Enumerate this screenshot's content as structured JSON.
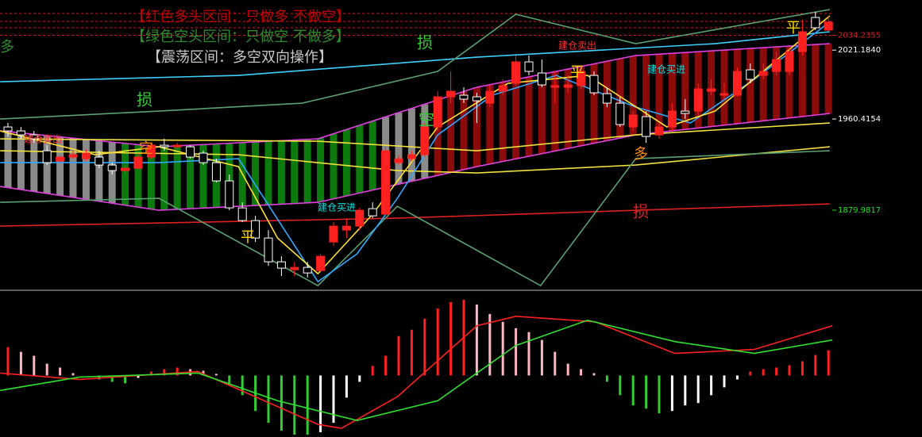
{
  "chart_data": [
    {
      "type": "candlestick",
      "open": [
        1953.4,
        1949.9,
        1946.4,
        1932.4,
        1923.3,
        1926.8,
        1925.4,
        1926.8,
        1919.8,
        1914.9,
        1917.0,
        1926.8,
        1937.3,
        1935.9,
        1935.9,
        1930.3,
        1921.9,
        1905.8,
        1882.0,
        1870.8,
        1855.4,
        1834.4,
        1827.4,
        1829.5,
        1826.7,
        1851.9,
        1862.4,
        1865.9,
        1881.3,
        1876.4,
        1921.9,
        1925.4,
        1928.9,
        1953.4,
        1980.0,
        1981.4,
        1980.0,
        1974.4,
        1984.9,
        1991.9,
        2010.8,
        2001.0,
        1988.4,
        1988.4,
        1989.8,
        1998.9,
        1982.8,
        1974.4,
        1953.4,
        1962.5,
        1946.4,
        1953.4,
        1967.4,
        1967.4,
        1984.9,
        1981.4,
        1981.4,
        2003.8,
        1998.9,
        2002.4,
        2002.4,
        2019.9,
        2050.0,
        2038.8
      ],
      "high": [
        1956.9,
        1953.4,
        1949.9,
        1937.3,
        1928.9,
        1932.4,
        1933.8,
        1932.4,
        1921.9,
        1919.8,
        1930.3,
        1939.4,
        1942.9,
        1939.4,
        1937.3,
        1932.4,
        1925.4,
        1911.4,
        1886.9,
        1875.0,
        1862.4,
        1839.3,
        1834.4,
        1834.4,
        1841.4,
        1869.4,
        1872.9,
        1882.0,
        1886.9,
        1935.9,
        1928.9,
        1932.4,
        1956.9,
        1984.9,
        2002.4,
        1988.4,
        1983.5,
        1989.8,
        1995.4,
        2016.4,
        2016.4,
        2012.9,
        2002.4,
        1998.9,
        2005.9,
        2002.4,
        1988.4,
        1980.0,
        1967.4,
        1967.4,
        1956.9,
        1974.4,
        1977.9,
        1991.9,
        1995.4,
        1991.9,
        2005.9,
        2009.4,
        2009.4,
        2019.9,
        2023.4,
        2047.9,
        2054.9,
        2051.4
      ],
      "low": [
        1945.0,
        1942.9,
        1939.4,
        1919.8,
        1921.9,
        1925.4,
        1923.3,
        1917.0,
        1911.4,
        1911.4,
        1916.3,
        1925.4,
        1932.4,
        1933.8,
        1925.4,
        1919.8,
        1904.4,
        1879.9,
        1869.4,
        1851.9,
        1830.9,
        1821.8,
        1821.8,
        1820.4,
        1824.6,
        1848.4,
        1855.4,
        1862.4,
        1872.9,
        1875.0,
        1919.8,
        1923.3,
        1926.8,
        1949.9,
        1974.4,
        1974.4,
        1956.9,
        1970.9,
        1981.4,
        1989.8,
        1998.9,
        1988.4,
        1974.4,
        1983.5,
        1987.0,
        1981.4,
        1970.9,
        1953.4,
        1949.9,
        1939.4,
        1942.9,
        1949.9,
        1960.4,
        1963.9,
        1981.4,
        1977.9,
        1980.0,
        1991.9,
        1995.4,
        1998.9,
        1998.9,
        2016.4,
        2038.8,
        2037.4
      ],
      "close": [
        1949.9,
        1946.4,
        1942.9,
        1921.9,
        1926.8,
        1928.9,
        1930.3,
        1919.8,
        1914.9,
        1917.0,
        1926.8,
        1937.3,
        1935.9,
        1937.3,
        1926.8,
        1921.9,
        1905.8,
        1882.0,
        1870.8,
        1855.4,
        1834.4,
        1828.8,
        1829.5,
        1824.6,
        1839.3,
        1865.9,
        1865.9,
        1879.9,
        1875.0,
        1932.4,
        1925.4,
        1928.9,
        1953.4,
        1980.0,
        1984.9,
        1977.9,
        1976.5,
        1984.9,
        1989.8,
        2010.8,
        2002.4,
        1990.5,
        1989.8,
        1990.5,
        2002.4,
        1983.5,
        1974.4,
        1955.5,
        1963.9,
        1945.0,
        1953.4,
        1967.4,
        1965.3,
        1987.0,
        1987.0,
        1982.8,
        2002.4,
        1995.4,
        2002.4,
        2012.9,
        2019.9,
        2037.4,
        2040.9,
        2045.8
      ],
      "up_color": "#ff2020",
      "down_color": "#ffffff",
      "ylim": [
        1810,
        2065.4
      ],
      "yticks": [
        2034.2355,
        {
          "value": 2021.184,
          "label": "2021.1840"
        },
        1960.4154,
        1879.9817
      ],
      "ytick_colors": [
        "#d02020",
        "#ffffff",
        "#ffffff",
        "#20e020"
      ],
      "dashed_levels": [
        2053.5,
        2046.5,
        2040.9,
        2034.2355
      ],
      "dashed_color": "#c02020",
      "zones": [
        {
          "from": 0,
          "to": 8,
          "color": "#8a8a8a"
        },
        {
          "from": 9,
          "to": 28,
          "color": "#0c7a0c"
        },
        {
          "from": 29,
          "to": 32,
          "color": "#8a8a8a"
        },
        {
          "from": 33,
          "to": 63,
          "color": "#8b0a0a"
        }
      ],
      "overlays": [
        {
          "color": "#40d0ff",
          "x": [
            -0.6,
            17.7,
            36,
            54.3,
            63.1
          ],
          "values": [
            1993.3,
            1998.9,
            2015.0,
            2026.9,
            2037.4
          ]
        },
        {
          "color": "#e02020",
          "x": [
            -0.6,
            29.9,
            63.1
          ],
          "values": [
            1865.9,
            1872.9,
            1885.5
          ]
        },
        {
          "color": "#e040e0",
          "x": [
            -0.6,
            11.6,
            23.8,
            36,
            48.2,
            63.1
          ],
          "values": [
            1949.9,
            1935.9,
            1942.9,
            1988.4,
            2016.4,
            2026.9
          ]
        },
        {
          "color": "#e040e0",
          "x": [
            -0.6,
            11.6,
            23.8,
            36,
            48.2,
            63.1
          ],
          "values": [
            1900.9,
            1879.9,
            1886.9,
            1918.4,
            1946.4,
            1965.3
          ]
        },
        {
          "color": "#f0e040",
          "x": [
            -0.6,
            17.7,
            29.9,
            36,
            48.2,
            63.1
          ],
          "values": [
            1932.4,
            1928.9,
            1914.9,
            1912.8,
            1919.8,
            1935.9
          ]
        },
        {
          "color": "#f0e040",
          "x": [
            -0.6,
            23.8,
            36,
            48.2,
            63.1
          ],
          "values": [
            1942.9,
            1940.8,
            1932.4,
            1946.4,
            1956.9
          ]
        },
        {
          "color": "#5aa070",
          "x": [
            -0.6,
            11.6,
            22.6,
            33,
            39,
            48.2,
            63.1
          ],
          "values": [
            1960.4,
            1967.4,
            1974.4,
            2002.4,
            2052.8,
            2026.9,
            2057.0
          ]
        },
        {
          "color": "#5aa070",
          "x": [
            -0.6,
            11.6,
            23.8,
            29.9,
            40.9,
            48.2,
            63.1
          ],
          "values": [
            1886.9,
            1890.4,
            1813.4,
            1883.4,
            1813.4,
            1925.4,
            1932.4
          ]
        },
        {
          "color": "#30a8ff",
          "x": [
            -0.6,
            11.6,
            17.7,
            23.8,
            26.8,
            29.9,
            33,
            37.2,
            42.1,
            48.2,
            52.4,
            57.3,
            63.1
          ],
          "values": [
            1921.9,
            1921.9,
            1925.4,
            1816.9,
            1841.4,
            1890.4,
            1946.4,
            1981.4,
            1998.9,
            1970.9,
            1956.9,
            1995.4,
            2046.0
          ]
        },
        {
          "color": "#ffe030",
          "x": [
            -0.6,
            6.7,
            11.6,
            17.7,
            20.7,
            23.8,
            28,
            33,
            38.4,
            44.5,
            50.6,
            54.3,
            63.1
          ],
          "values": [
            1949.9,
            1928.9,
            1935.9,
            1918.4,
            1855.4,
            1823.9,
            1876.4,
            1953.4,
            1991.9,
            1998.9,
            1953.4,
            1967.4,
            2051.4
          ]
        }
      ],
      "annotations": [
        {
          "text": "【红色多头区间：只做多 不做空】",
          "color": "#c00000"
        },
        {
          "text": "【绿色空头区间：只做空 不做多】",
          "color": "#2e8b2e"
        },
        {
          "text": "【震荡区间：多空双向操作】",
          "color": "#c8c8c8"
        },
        {
          "text": "做多",
          "color": "#2e8b2e"
        },
        {
          "text": "损",
          "color": "#33cc33"
        },
        {
          "text": "损",
          "color": "#33cc33"
        },
        {
          "text": "损",
          "color": "#e02020"
        },
        {
          "text": "空",
          "color": "#33cc33"
        },
        {
          "text": "空",
          "color": "#ff8c00"
        },
        {
          "text": "平",
          "color": "#ffd700"
        },
        {
          "text": "平",
          "color": "#ffd700"
        },
        {
          "text": "平",
          "color": "#ffd700"
        },
        {
          "text": "多",
          "color": "#ff8c00"
        },
        {
          "text": "建仓买进",
          "color": "#00e5e5"
        },
        {
          "text": "建仓买进",
          "color": "#00e5e5"
        },
        {
          "text": "建仓卖出",
          "color": "#ff3030"
        },
        {
          "text": "建仓卖出",
          "color": "#ff3030"
        }
      ]
    },
    {
      "type": "bar",
      "values": [
        36,
        30,
        25,
        15,
        10,
        3,
        0,
        -5,
        -8,
        -10,
        -3,
        5,
        8,
        10,
        8,
        6,
        2,
        -10,
        -25,
        -45,
        -60,
        -70,
        -75,
        -75,
        -72,
        -60,
        -28,
        -8,
        12,
        25,
        50,
        58,
        72,
        85,
        93,
        96,
        90,
        78,
        68,
        60,
        55,
        45,
        30,
        15,
        8,
        3,
        -8,
        -25,
        -38,
        -42,
        -48,
        -45,
        -38,
        -35,
        -25,
        -15,
        -5,
        5,
        8,
        10,
        13,
        18,
        26,
        32
      ],
      "colors": {
        "positive_rising": "#ff2020",
        "positive_falling": "#ffb6c1",
        "negative_falling": "#32cd32",
        "negative_rising": "#ffffff"
      },
      "ylim": [
        -78,
        107
      ],
      "lines": [
        {
          "color": "#ff2020",
          "x": [
            -0.6,
            5.5,
            14.6,
            23.8,
            25.6,
            29.9,
            36,
            39,
            45.1,
            51.2,
            57.3,
            63.3
          ],
          "values": [
            3,
            -5,
            5,
            -62,
            -67,
            -27,
            63,
            75,
            68,
            28,
            33,
            63
          ]
        },
        {
          "color": "#30e030",
          "x": [
            -0.6,
            5.5,
            14.6,
            20.7,
            26.8,
            33,
            39,
            44.5,
            51.2,
            57.3,
            63.3
          ],
          "values": [
            -19,
            -2,
            3,
            -32,
            -57,
            -32,
            38,
            70,
            43,
            28,
            45
          ]
        }
      ]
    }
  ]
}
